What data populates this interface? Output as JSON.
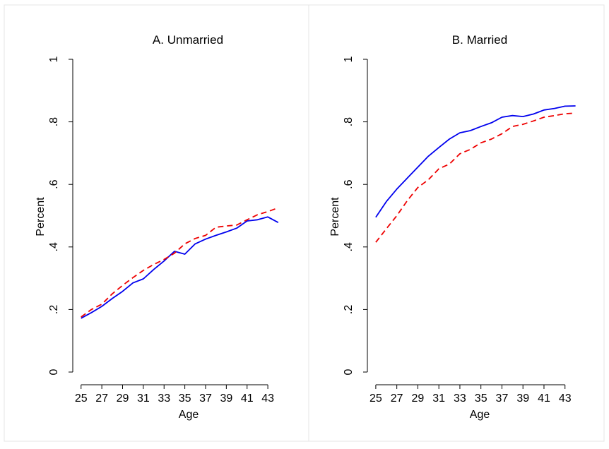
{
  "chart_data": [
    {
      "type": "line",
      "title": "A. Unmarried",
      "xlabel": "Age",
      "ylabel": "Percent",
      "x": [
        25,
        26,
        27,
        28,
        29,
        30,
        31,
        32,
        33,
        34,
        35,
        36,
        37,
        38,
        39,
        40,
        41,
        42,
        43,
        44
      ],
      "xticks": [
        "25",
        "27",
        "29",
        "31",
        "33",
        "35",
        "37",
        "39",
        "41",
        "43"
      ],
      "yticks": [
        "0",
        ".2",
        ".4",
        ".6",
        ".8",
        "1"
      ],
      "ylim": [
        0,
        1
      ],
      "xlim": [
        24.2,
        44.9
      ],
      "grid": false,
      "series": [
        {
          "color": "#0000ee",
          "dash": "solid",
          "values": [
            0.172,
            0.19,
            0.21,
            0.235,
            0.258,
            0.285,
            0.298,
            0.328,
            0.355,
            0.386,
            0.377,
            0.41,
            0.425,
            0.437,
            0.448,
            0.46,
            0.483,
            0.487,
            0.496,
            0.478
          ]
        },
        {
          "color": "#ee0000",
          "dash": "dashed",
          "values": [
            0.176,
            0.2,
            0.217,
            0.25,
            0.277,
            0.302,
            0.325,
            0.344,
            0.36,
            0.38,
            0.41,
            0.427,
            0.437,
            0.463,
            0.467,
            0.47,
            0.487,
            0.503,
            0.513,
            0.525
          ]
        }
      ]
    },
    {
      "type": "line",
      "title": "B. Married",
      "xlabel": "Age",
      "ylabel": "Percent",
      "x": [
        25,
        26,
        27,
        28,
        29,
        30,
        31,
        32,
        33,
        34,
        35,
        36,
        37,
        38,
        39,
        40,
        41,
        42,
        43,
        44
      ],
      "xticks": [
        "25",
        "27",
        "29",
        "31",
        "33",
        "35",
        "37",
        "39",
        "41",
        "43"
      ],
      "yticks": [
        "0",
        ".2",
        ".4",
        ".6",
        ".8",
        "1"
      ],
      "ylim": [
        0,
        1
      ],
      "xlim": [
        24.2,
        44.9
      ],
      "grid": false,
      "series": [
        {
          "color": "#0000ee",
          "dash": "solid",
          "values": [
            0.495,
            0.545,
            0.585,
            0.62,
            0.655,
            0.69,
            0.718,
            0.745,
            0.765,
            0.772,
            0.785,
            0.797,
            0.815,
            0.82,
            0.817,
            0.825,
            0.838,
            0.843,
            0.85,
            0.851
          ]
        },
        {
          "color": "#ee0000",
          "dash": "dashed",
          "values": [
            0.415,
            0.458,
            0.5,
            0.548,
            0.59,
            0.615,
            0.65,
            0.665,
            0.698,
            0.712,
            0.733,
            0.745,
            0.762,
            0.785,
            0.792,
            0.803,
            0.815,
            0.82,
            0.826,
            0.828
          ]
        }
      ]
    }
  ]
}
